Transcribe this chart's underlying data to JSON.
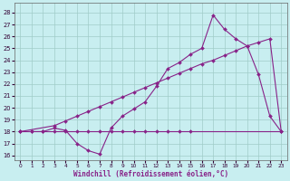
{
  "xlabel": "Windchill (Refroidissement éolien,°C)",
  "bg_color": "#c8eef0",
  "grid_color": "#a0ccc8",
  "line_color": "#882288",
  "x_ticks": [
    0,
    1,
    2,
    3,
    4,
    5,
    6,
    7,
    8,
    9,
    10,
    11,
    12,
    13,
    14,
    15,
    16,
    17,
    18,
    19,
    20,
    21,
    22,
    23
  ],
  "y_ticks": [
    16,
    17,
    18,
    19,
    20,
    21,
    22,
    23,
    24,
    25,
    26,
    27,
    28
  ],
  "ylim": [
    15.6,
    28.8
  ],
  "xlim": [
    -0.5,
    23.5
  ],
  "line1_x": [
    0,
    1,
    2,
    3,
    4,
    5,
    6,
    7,
    8,
    9,
    10,
    11,
    12,
    13,
    14,
    15,
    23
  ],
  "line1_y": [
    18,
    18,
    18,
    18,
    18,
    18,
    18,
    18,
    18,
    18,
    18,
    18,
    18,
    18,
    18,
    18,
    18
  ],
  "line2_x": [
    0,
    3,
    4,
    5,
    6,
    7,
    8,
    9,
    10,
    11,
    12,
    13,
    14,
    15,
    16,
    17,
    18,
    19,
    20,
    21,
    22,
    23
  ],
  "line2_y": [
    18,
    18.5,
    18.9,
    19.3,
    19.7,
    20.1,
    20.5,
    20.9,
    21.3,
    21.7,
    22.1,
    22.5,
    22.9,
    23.3,
    23.7,
    24.0,
    24.4,
    24.8,
    25.2,
    25.5,
    25.8,
    18.0
  ],
  "line3_x": [
    0,
    1,
    2,
    3,
    4,
    5,
    6,
    7,
    8,
    9,
    10,
    11,
    12,
    13,
    14,
    15,
    16,
    17,
    18,
    19,
    20,
    21,
    22,
    23
  ],
  "line3_y": [
    18,
    18,
    18,
    18.3,
    18.1,
    17.0,
    16.4,
    16.1,
    18.3,
    19.3,
    19.9,
    20.5,
    21.8,
    23.3,
    23.8,
    24.5,
    25.0,
    27.8,
    26.6,
    25.8,
    25.2,
    22.8,
    19.3,
    18.0
  ]
}
